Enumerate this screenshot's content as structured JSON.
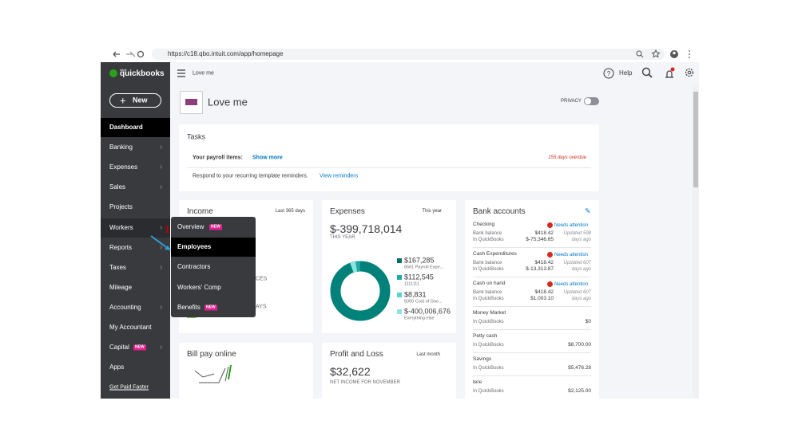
{
  "browser": {
    "url": "https://c18.qbo.intuit.com/app/homepage"
  },
  "logo": {
    "brand": "intuit",
    "name": "quickbooks"
  },
  "header": {
    "company": "Love me",
    "help": "Help"
  },
  "sidebar": {
    "new_button": "New",
    "items": [
      "Dashboard",
      "Banking",
      "Expenses",
      "Sales",
      "Projects",
      "Workers",
      "Reports",
      "Taxes",
      "Mileage",
      "Accounting",
      "My Accountant",
      "Capital",
      "Apps",
      "Get Paid Faster"
    ],
    "capital_badge": "NEW"
  },
  "company": {
    "name": "Love me",
    "privacy": "PRIVACY"
  },
  "tasks": {
    "title": "Tasks",
    "payroll_label": "Your payroll items:",
    "show_more": "Show more",
    "overdue": "155 days overdue",
    "reminder_text": "Respond to your recurring template reminders.",
    "view_reminders": "View reminders"
  },
  "income": {
    "title": "Income",
    "period": "Last 365 days",
    "fragments": [
      "CES",
      "AYS"
    ]
  },
  "workers_menu": {
    "items": [
      "Overview",
      "Employees",
      "Contractors",
      "Workers' Comp",
      "Benefits"
    ],
    "overview_badge": "NEW",
    "benefits_badge": "NEW",
    "annotation": "1"
  },
  "expenses": {
    "title": "Expenses",
    "period": "This year",
    "total": "$-399,718,014",
    "total_label": "THIS YEAR",
    "legend": [
      {
        "amount": "$167,285",
        "label": "6561 Payroll Expe..."
      },
      {
        "amount": "$112,545",
        "label": "1111111"
      },
      {
        "amount": "$8,831",
        "label": "5000 Cost of Goo..."
      },
      {
        "amount": "$-400,006,676",
        "label": "Everything else"
      }
    ]
  },
  "bank_accounts": {
    "title": "Bank accounts",
    "status": "Needs attention",
    "balance_label": "Bank balance",
    "qb_label": "In QuickBooks",
    "accounts": [
      {
        "name": "Checking",
        "balance": "$418.42",
        "qb_balance": "$-75,346.65",
        "updated": [
          "Updated 598",
          "days ago"
        ]
      },
      {
        "name": "Cash Expenditures",
        "balance": "$418.42",
        "qb_balance": "$-13,313.87",
        "updated": [
          "Updated 607",
          "days ago"
        ]
      },
      {
        "name": "Cash on hand",
        "balance": "$418.42",
        "qb_balance": "$1,003.10",
        "updated": [
          "Updated 607",
          "days ago"
        ]
      },
      {
        "name": "Money Market",
        "qb_balance": "$0"
      },
      {
        "name": "Petty cash",
        "qb_balance": "$8,700.00"
      },
      {
        "name": "Savings",
        "qb_balance": "$5,476.28"
      },
      {
        "name": "tere",
        "qb_balance": "$2,125.00"
      }
    ]
  },
  "bill_pay": {
    "title": "Bill pay online"
  },
  "profit_loss": {
    "title": "Profit and Loss",
    "period": "Last month",
    "amount": "$32,622",
    "subtitle": "NET INCOME FOR NOVEMBER"
  }
}
